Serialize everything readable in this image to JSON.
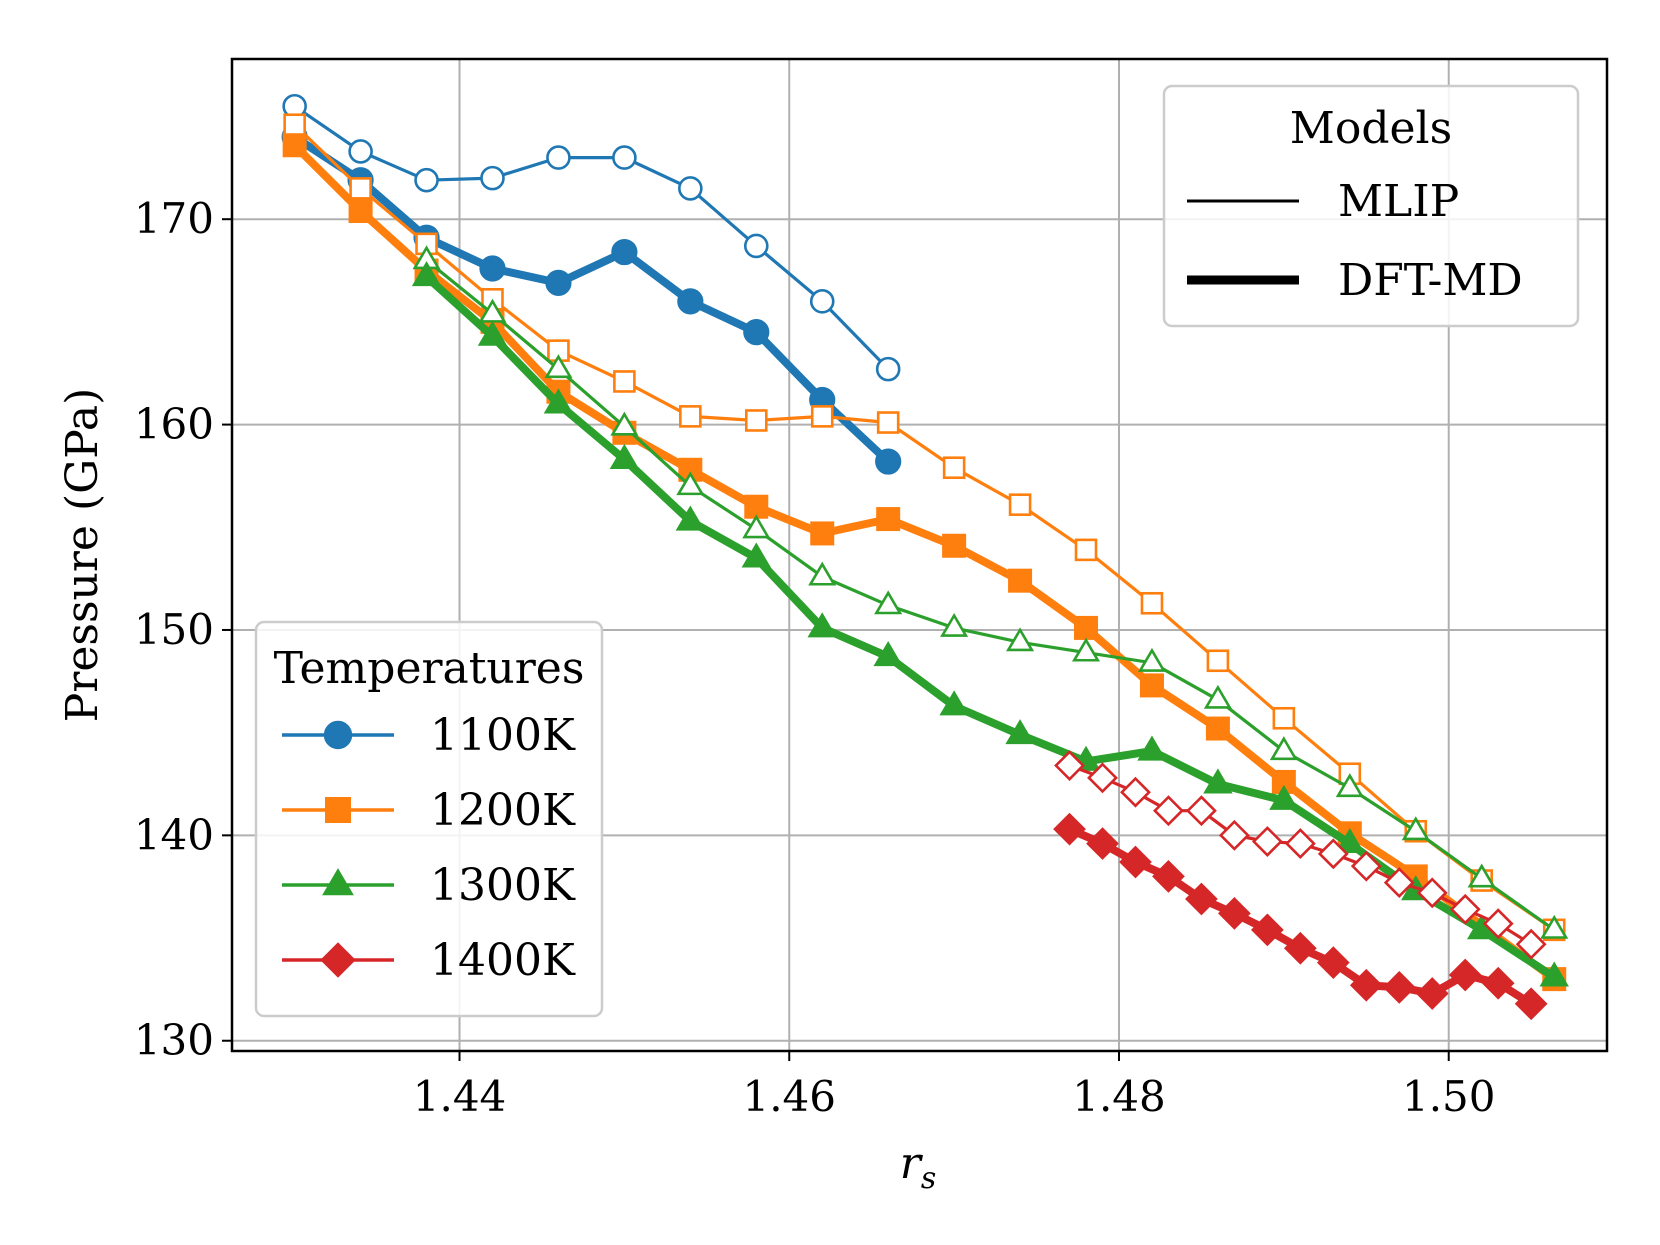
{
  "chart_data": {
    "type": "line",
    "xlabel": "r_s",
    "ylabel": "Pressure (GPa)",
    "xlim": [
      1.4262,
      1.5096
    ],
    "ylim": [
      129.5,
      177.8
    ],
    "x_ticks": [
      1.44,
      1.46,
      1.48,
      1.5
    ],
    "x_tick_labels": [
      "1.44",
      "1.46",
      "1.48",
      "1.50"
    ],
    "y_ticks": [
      130,
      140,
      150,
      160,
      170
    ],
    "y_tick_labels": [
      "130",
      "140",
      "150",
      "160",
      "170"
    ],
    "grid": true,
    "colors": {
      "1100K": "#1f77b4",
      "1200K": "#ff7f0e",
      "1300K": "#2ca02c",
      "1400K": "#d62728"
    },
    "legends": {
      "temperatures": {
        "title": "Temperatures",
        "placement": "lower-left",
        "entries": [
          {
            "label": "1100K",
            "marker": "circle"
          },
          {
            "label": "1200K",
            "marker": "square"
          },
          {
            "label": "1300K",
            "marker": "triangle"
          },
          {
            "label": "1400K",
            "marker": "diamond"
          }
        ]
      },
      "models": {
        "title": "Models",
        "placement": "top-right",
        "entries": [
          {
            "label": "MLIP",
            "style": "thin"
          },
          {
            "label": "DFT-MD",
            "style": "thick"
          }
        ]
      }
    },
    "series": [
      {
        "temperature": "1100K",
        "model": "DFT-MD",
        "marker": "circle",
        "filled": true,
        "x": [
          1.43,
          1.434,
          1.438,
          1.442,
          1.446,
          1.45,
          1.454,
          1.458,
          1.462,
          1.466
        ],
        "y": [
          174.0,
          171.9,
          169.1,
          167.6,
          166.9,
          168.4,
          166.0,
          164.5,
          161.2,
          158.2
        ]
      },
      {
        "temperature": "1100K",
        "model": "MLIP",
        "marker": "circle",
        "filled": false,
        "x": [
          1.43,
          1.434,
          1.438,
          1.442,
          1.446,
          1.45,
          1.454,
          1.458,
          1.462,
          1.466
        ],
        "y": [
          175.5,
          173.3,
          171.9,
          172.0,
          173.0,
          173.0,
          171.5,
          168.7,
          166.0,
          162.7
        ]
      },
      {
        "temperature": "1200K",
        "model": "DFT-MD",
        "marker": "square",
        "filled": true,
        "x": [
          1.43,
          1.434,
          1.438,
          1.442,
          1.446,
          1.45,
          1.454,
          1.458,
          1.462,
          1.466,
          1.47,
          1.474,
          1.478,
          1.482,
          1.486,
          1.49,
          1.494,
          1.498,
          1.5064
        ],
        "y": [
          173.6,
          170.4,
          167.5,
          165.0,
          161.6,
          159.6,
          157.8,
          156.0,
          154.7,
          155.4,
          154.1,
          152.4,
          150.1,
          147.3,
          145.2,
          142.6,
          140.1,
          138.0,
          133.0
        ]
      },
      {
        "temperature": "1200K",
        "model": "MLIP",
        "marker": "square",
        "filled": false,
        "x": [
          1.43,
          1.434,
          1.438,
          1.442,
          1.446,
          1.45,
          1.454,
          1.458,
          1.462,
          1.466,
          1.47,
          1.474,
          1.478,
          1.482,
          1.486,
          1.49,
          1.494,
          1.498,
          1.502,
          1.5064
        ],
        "y": [
          174.6,
          171.5,
          168.8,
          166.1,
          163.6,
          162.1,
          160.4,
          160.2,
          160.4,
          160.1,
          157.9,
          156.1,
          153.9,
          151.3,
          148.5,
          145.7,
          143.0,
          140.2,
          137.8,
          135.4
        ]
      },
      {
        "temperature": "1300K",
        "model": "DFT-MD",
        "marker": "triangle",
        "filled": true,
        "x": [
          1.438,
          1.442,
          1.446,
          1.45,
          1.454,
          1.458,
          1.462,
          1.466,
          1.47,
          1.474,
          1.478,
          1.482,
          1.486,
          1.49,
          1.494,
          1.498,
          1.502,
          1.5064
        ],
        "y": [
          167.2,
          164.3,
          161.0,
          158.3,
          155.3,
          153.5,
          150.1,
          148.7,
          146.3,
          144.9,
          143.6,
          144.1,
          142.5,
          141.7,
          139.6,
          137.3,
          135.4,
          133.1
        ]
      },
      {
        "temperature": "1300K",
        "model": "MLIP",
        "marker": "triangle",
        "filled": false,
        "x": [
          1.438,
          1.442,
          1.446,
          1.45,
          1.454,
          1.458,
          1.462,
          1.466,
          1.47,
          1.474,
          1.478,
          1.482,
          1.486,
          1.49,
          1.494,
          1.498,
          1.502,
          1.5064
        ],
        "y": [
          168.0,
          165.4,
          162.7,
          159.9,
          157.0,
          154.9,
          152.6,
          151.2,
          150.1,
          149.4,
          148.9,
          148.4,
          146.6,
          144.1,
          142.3,
          140.2,
          137.9,
          135.4
        ]
      },
      {
        "temperature": "1400K",
        "model": "DFT-MD",
        "marker": "diamond",
        "filled": true,
        "x": [
          1.477,
          1.479,
          1.481,
          1.483,
          1.485,
          1.487,
          1.489,
          1.491,
          1.493,
          1.495,
          1.497,
          1.499,
          1.501,
          1.503,
          1.505
        ],
        "y": [
          140.3,
          139.6,
          138.7,
          138.0,
          136.9,
          136.2,
          135.4,
          134.5,
          133.8,
          132.7,
          132.6,
          132.3,
          133.2,
          132.8,
          131.8
        ]
      },
      {
        "temperature": "1400K",
        "model": "MLIP",
        "marker": "diamond",
        "filled": false,
        "x": [
          1.477,
          1.479,
          1.481,
          1.483,
          1.485,
          1.487,
          1.489,
          1.491,
          1.493,
          1.495,
          1.497,
          1.499,
          1.501,
          1.503,
          1.505
        ],
        "y": [
          143.4,
          142.8,
          142.1,
          141.2,
          141.2,
          140.0,
          139.7,
          139.6,
          139.1,
          138.5,
          137.7,
          137.2,
          136.4,
          135.7,
          134.7
        ]
      }
    ]
  }
}
